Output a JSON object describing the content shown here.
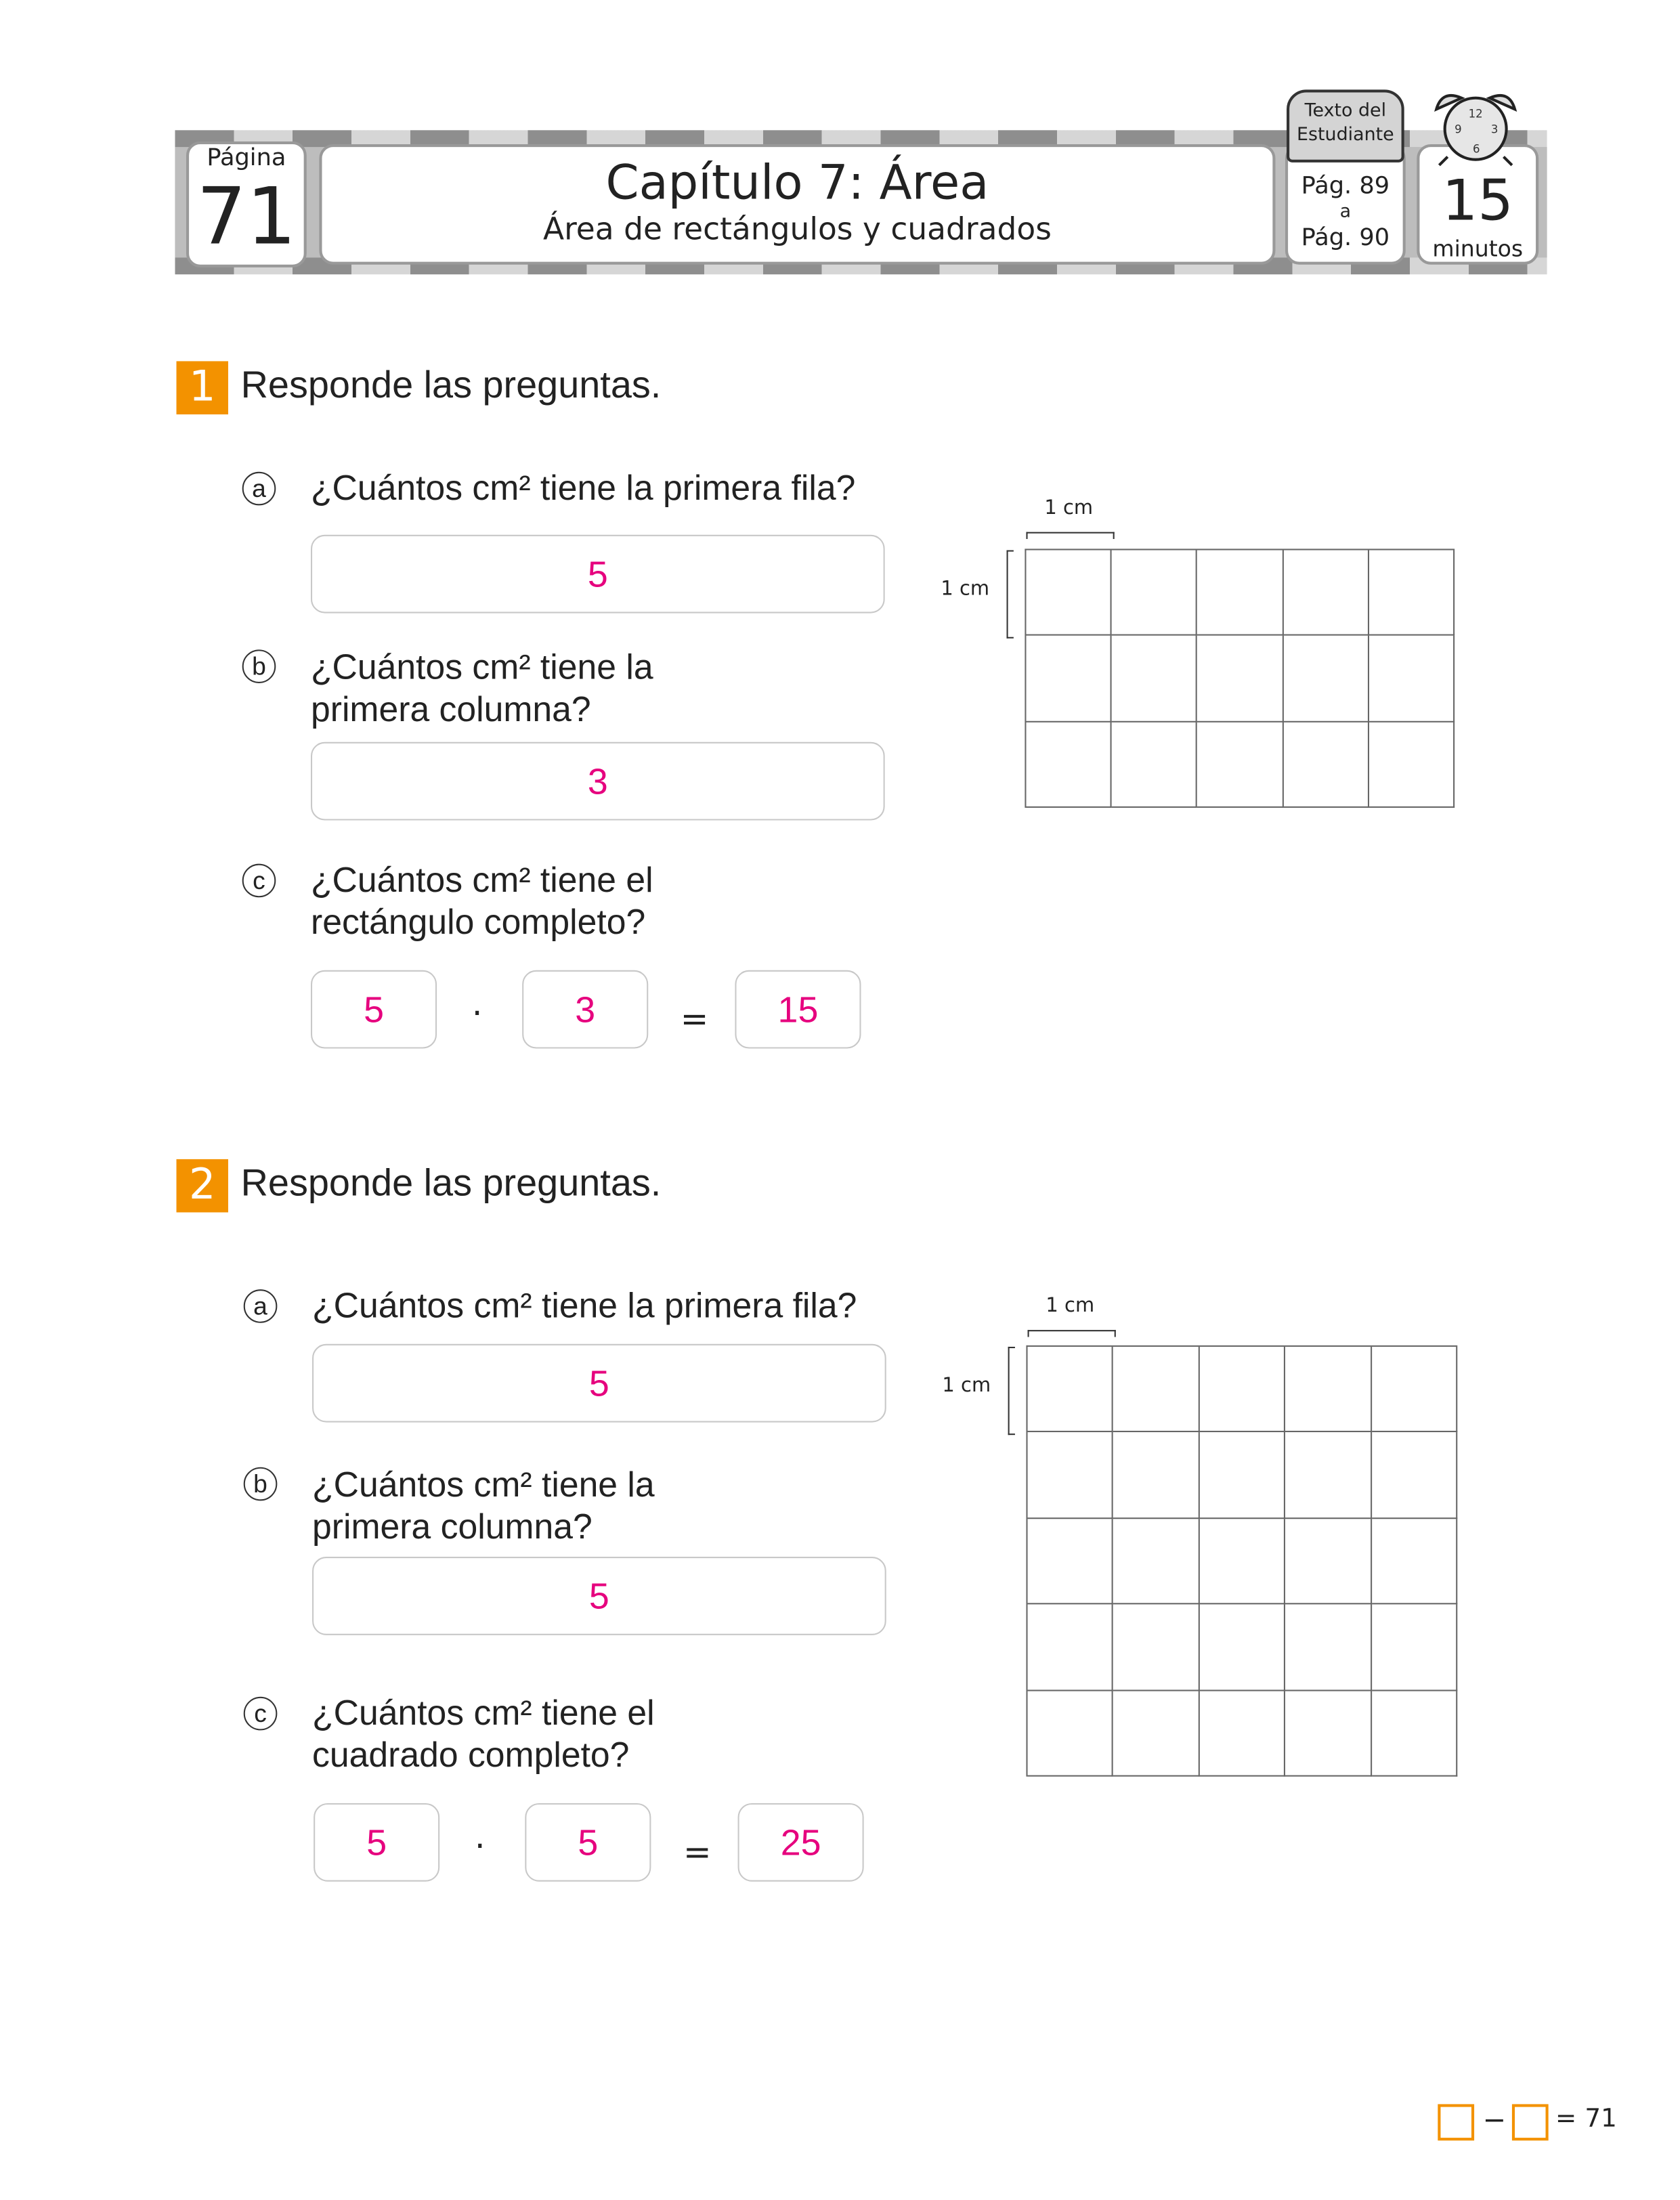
{
  "header": {
    "page_label": "Página",
    "page_number": "71",
    "title": "Capítulo 7: Área",
    "subtitle": "Área de rectángulos y cuadrados",
    "book_label": "Texto del Estudiante",
    "pages_from": "Pág. 89",
    "pages_sep": "a",
    "pages_to": "Pág. 90",
    "time_value": "15",
    "time_unit": "minutos",
    "clock_icon": "alarm-clock-icon",
    "book_icon": "open-book-icon"
  },
  "colors": {
    "accent": "#F39200",
    "answer": "#E6007E"
  },
  "sections": [
    {
      "number": "1",
      "instruction": "Responde las preguntas.",
      "questions": [
        {
          "letter": "a",
          "text": "¿Cuántos cm² tiene la primera fila?",
          "answer": "5"
        },
        {
          "letter": "b",
          "text1": "¿Cuántos cm² tiene la",
          "text2": "primera columna?",
          "answer": "3"
        },
        {
          "letter": "c",
          "text1": "¿Cuántos cm² tiene el",
          "text2": "rectángulo completo?",
          "factor1": "5",
          "op": "·",
          "factor2": "3",
          "eq": "=",
          "result": "15"
        }
      ],
      "grid": {
        "columns": 5,
        "rows": 3,
        "unit_top": "1 cm",
        "unit_left": "1 cm"
      }
    },
    {
      "number": "2",
      "instruction": "Responde las preguntas.",
      "questions": [
        {
          "letter": "a",
          "text": "¿Cuántos cm² tiene la primera fila?",
          "answer": "5"
        },
        {
          "letter": "b",
          "text1": "¿Cuántos cm² tiene la",
          "text2": "primera columna?",
          "answer": "5"
        },
        {
          "letter": "c",
          "text1": "¿Cuántos cm² tiene el",
          "text2": "cuadrado completo?",
          "factor1": "5",
          "op": "·",
          "factor2": "5",
          "eq": "=",
          "result": "25"
        }
      ],
      "grid": {
        "columns": 5,
        "rows": 5,
        "unit_top": "1 cm",
        "unit_left": "1 cm"
      }
    }
  ],
  "footer": {
    "minus": "−",
    "equals": "=",
    "value": "71"
  }
}
